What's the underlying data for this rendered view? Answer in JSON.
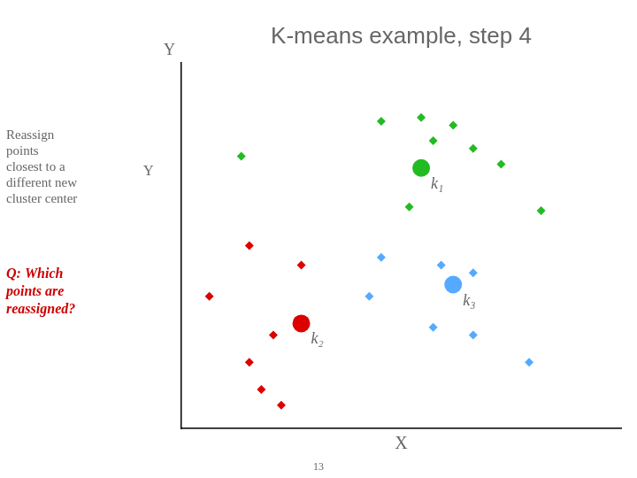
{
  "chart_data": {
    "type": "scatter",
    "title": "K-means example, step 4",
    "x_label": "X",
    "y_label": "Y",
    "xlim": [
      0.5,
      11.5
    ],
    "ylim": [
      1.8,
      11.2
    ],
    "xticks": [],
    "yticks": [],
    "tick_labels": false,
    "grid": false,
    "series": [
      {
        "color": "#22BB22",
        "marker": "diamond",
        "x": [
          2.0,
          5.5,
          6.5,
          7.3,
          6.8,
          7.8,
          8.5,
          6.2,
          9.5
        ],
        "values": [
          8.8,
          9.7,
          9.8,
          9.6,
          9.2,
          9.0,
          8.6,
          7.5,
          7.4
        ]
      },
      {
        "color": "#DD0000",
        "marker": "diamond",
        "x": [
          2.2,
          1.2,
          3.5,
          2.8,
          2.2,
          2.5,
          3.0
        ],
        "values": [
          6.5,
          5.2,
          6.0,
          4.2,
          3.5,
          2.8,
          2.4
        ]
      },
      {
        "color": "#55AAFF",
        "marker": "diamond",
        "x": [
          5.5,
          5.2,
          7.0,
          7.8,
          6.8,
          7.8,
          9.2
        ],
        "values": [
          6.2,
          5.2,
          6.0,
          5.8,
          4.4,
          4.2,
          3.5
        ]
      },
      {
        "color": "#22BB22",
        "marker": "circle",
        "x": [
          6.5
        ],
        "values": [
          8.5
        ]
      },
      {
        "color": "#DD0000",
        "marker": "circle",
        "x": [
          3.5
        ],
        "values": [
          4.5
        ]
      },
      {
        "color": "#55AAFF",
        "marker": "circle",
        "x": [
          7.3
        ],
        "values": [
          5.5
        ]
      }
    ],
    "annotations": [
      {
        "text": "Reassign\npoints\nclosest to a\ndifferent new\ncluster center"
      },
      {
        "text": "Y"
      },
      {
        "text": "Q: Which\npoints are\nreassigned?",
        "color": "#CC0000"
      },
      {
        "text": "13"
      },
      {
        "text": "k₁",
        "x": 6.5,
        "y": 8.5
      },
      {
        "text": "k₂",
        "x": 3.5,
        "y": 4.5
      },
      {
        "text": "k₃",
        "x": 7.3,
        "y": 5.5
      }
    ]
  }
}
